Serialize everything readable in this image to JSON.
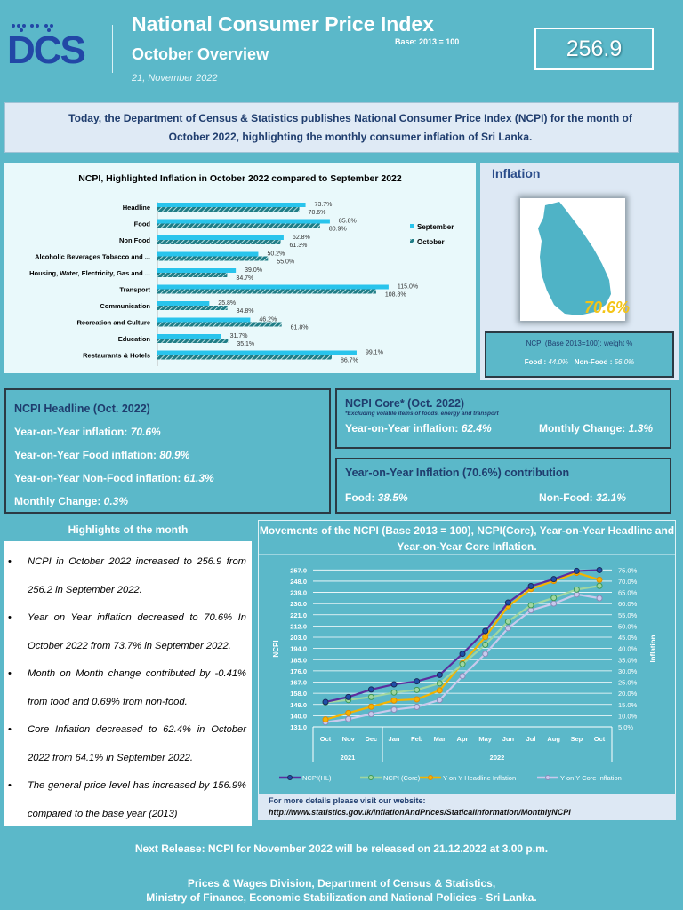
{
  "header": {
    "logo_text": "DCS",
    "title": "National Consumer Price Index",
    "base": "Base: 2013 = 100",
    "subtitle": "October Overview",
    "date": "21, November 2022",
    "index_value": "256.9"
  },
  "intro": "Today, the Department of Census & Statistics publishes National Consumer Price Index (NCPI) for the month of October 2022, highlighting the monthly consumer inflation of Sri Lanka.",
  "inflation_panel": {
    "title": "Inflation",
    "map_value": "70.6%",
    "weight_title": "NCPI (Base 2013=100): weight %",
    "food_label": "Food :",
    "food_value": "44.0%",
    "nonfood_label": "Non-Food :",
    "nonfood_value": "56.0%"
  },
  "headline": {
    "title": "NCPI Headline (Oct. 2022)",
    "rows": [
      {
        "label": "Year-on-Year inflation: ",
        "value": "70.6%"
      },
      {
        "label": "Year-on-Year Food inflation: ",
        "value": "80.9%"
      },
      {
        "label": "Year-on-Year Non-Food inflation: ",
        "value": "61.3%"
      },
      {
        "label": "Monthly Change: ",
        "value": "0.3%"
      }
    ]
  },
  "core": {
    "title": "NCPI Core* (Oct. 2022)",
    "note": "*Excluding volatile items of foods, energy and transport",
    "yoy_label": "Year-on-Year inflation: ",
    "yoy_value": "62.4%",
    "mc_label": "Monthly Change: ",
    "mc_value": "1.3%"
  },
  "contribution": {
    "title": "Year-on-Year Inflation (70.6%) contribution",
    "food_label": "Food: ",
    "food_value": "38.5%",
    "nonfood_label": "Non-Food: ",
    "nonfood_value": "32.1%"
  },
  "highlights": {
    "title": "Highlights of the month",
    "items": [
      "NCPI in October 2022 increased to 256.9 from 256.2 in September 2022.",
      "Year on Year inflation decreased to 70.6% In October 2022 from 73.7% in September 2022.",
      "Month on Month change contributed by -0.41% from food and 0.69% from non-food.",
      "Core Inflation decreased to 62.4% in October 2022 from 64.1% in September 2022.",
      "The general price level has increased by 156.9% compared to the base year (2013)"
    ]
  },
  "website": {
    "label": "For more details please visit our website:",
    "url": "http://www.statistics.gov.lk/InflationAndPrices/StaticalInformation/MonthlyNCPI"
  },
  "footer": {
    "next_release": "Next Release: NCPI for November 2022 will be released on 21.12.2022 at 3.00 p.m.",
    "line1": "Prices & Wages Division, Department of Census & Statistics,",
    "line2": "Ministry of Finance, Economic Stabilization and National Policies - Sri Lanka."
  },
  "colors": {
    "background": "#5bb8c9",
    "september": "#29c4ec",
    "october": "#1f7d86",
    "ncpi_hl": "#5b2d9e",
    "ncpi_core": "#9fd6a0",
    "yoy_headline": "#f4b400",
    "yoy_core": "#c9c9ec"
  },
  "chart_data": [
    {
      "type": "bar",
      "orientation": "horizontal",
      "title": "NCPI, Highlighted Inflation in October 2022 compared to September 2022",
      "categories": [
        "Headline",
        "Food",
        "Non Food",
        "Alcoholic Beverages Tobacco and ...",
        "Housing, Water, Electricity, Gas and ...",
        "Transport",
        "Communication",
        "Recreation and Culture",
        "Education",
        "Restaurants & Hotels"
      ],
      "series": [
        {
          "name": "September",
          "values": [
            73.7,
            85.8,
            62.8,
            50.2,
            39.0,
            115.0,
            25.8,
            46.2,
            31.7,
            99.1
          ],
          "labels": [
            "73.7%",
            "85.8%",
            "62.8%",
            "50.2%",
            "39.0%",
            "115.0%",
            "25.8%",
            "46.2%",
            "31.7%",
            "99.1%"
          ]
        },
        {
          "name": "October",
          "values": [
            70.6,
            80.9,
            61.3,
            55.0,
            34.7,
            108.8,
            34.8,
            61.8,
            35.1,
            86.7
          ],
          "labels": [
            "70.6%",
            "80.9%",
            "61.3%",
            "55.0%",
            "34.7%",
            "108.8%",
            "34.8%",
            "61.8%",
            "35.1%",
            "86.7%"
          ]
        }
      ],
      "legend": "right"
    },
    {
      "type": "line",
      "title": "Movements of the NCPI (Base 2013 = 100), NCPI(Core), Year-on-Year Headline and Year-on-Year Core Inflation.",
      "categories": [
        "Oct",
        "Nov",
        "Dec",
        "Jan",
        "Feb",
        "Mar",
        "Apr",
        "May",
        "Jun",
        "Jul",
        "Aug",
        "Sep",
        "Oct"
      ],
      "year_groups": [
        {
          "label": "2021",
          "count": 3
        },
        {
          "label": "2022",
          "count": 10
        }
      ],
      "ylabel": "NCPI",
      "y2label": "Inflation",
      "ylim": [
        131,
        257
      ],
      "yticks": [
        "131.0",
        "140.0",
        "149.0",
        "158.0",
        "167.0",
        "176.0",
        "185.0",
        "194.0",
        "203.0",
        "212.0",
        "221.0",
        "230.0",
        "239.0",
        "248.0",
        "257.0"
      ],
      "y2lim": [
        5,
        75
      ],
      "y2ticks": [
        "5.0%",
        "10.0%",
        "15.0%",
        "20.0%",
        "25.0%",
        "30.0%",
        "35.0%",
        "40.0%",
        "45.0%",
        "50.0%",
        "55.0%",
        "60.0%",
        "65.0%",
        "70.0%",
        "75.0%"
      ],
      "grid": true,
      "legend": "bottom",
      "series": [
        {
          "name": "NCPI(HL)",
          "axis": "left",
          "values": [
            151.0,
            155.0,
            161.0,
            165.2,
            167.6,
            172.8,
            189.7,
            208.0,
            230.8,
            244.0,
            249.6,
            256.2,
            256.9
          ]
        },
        {
          "name": "NCPI (Core)",
          "axis": "left",
          "values": [
            150.7,
            152.6,
            155.0,
            158.6,
            160.7,
            166.0,
            181.4,
            197.0,
            215.6,
            228.7,
            234.6,
            241.3,
            244.2
          ]
        },
        {
          "name": "Y on Y Headline Inflation",
          "axis": "right",
          "values": [
            8.3,
            11.2,
            14.0,
            16.8,
            17.3,
            21.3,
            33.4,
            45.1,
            58.8,
            66.5,
            70.1,
            73.7,
            70.6
          ]
        },
        {
          "name": "Y on Y Core Inflation",
          "axis": "right",
          "values": [
            7.1,
            8.5,
            10.7,
            12.7,
            13.9,
            17.0,
            27.7,
            37.6,
            49.0,
            57.0,
            60.0,
            64.1,
            62.4
          ]
        }
      ]
    }
  ]
}
